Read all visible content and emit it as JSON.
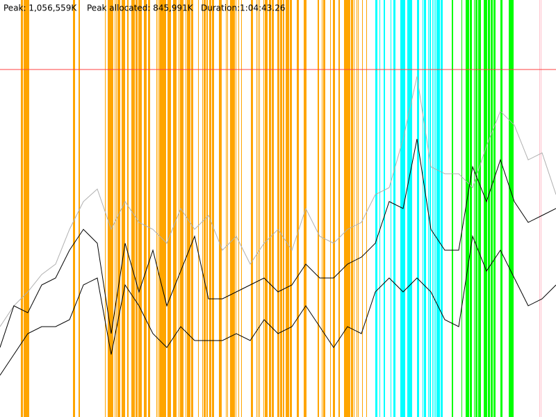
{
  "chart_data": {
    "type": "line",
    "stats": [
      "Peak: 1,056,559K",
      "Peak allocated: 845,991K",
      "Duration:1:04:43.26"
    ],
    "ylim": [
      0,
      1267800
    ],
    "peak_line": 1056559,
    "peak_color": "#ff4040",
    "phase_colors": [
      "#ffa500",
      "#00ffff",
      "#00ff00",
      "#ffc0cb"
    ],
    "series": [
      {
        "color": "#b0b0b0",
        "values": [
          274690,
          338080,
          380340,
          433165,
          464860,
          570510,
          655030,
          693064,
          570510,
          655030,
          591640,
          570510,
          528250,
          633900,
          570510,
          612770,
          507120,
          549380,
          464860,
          528250,
          570510,
          507120,
          633900,
          549380,
          528250,
          570510,
          591640,
          676160,
          697290,
          845200,
          1035370,
          760680,
          739550,
          739550,
          697290,
          824070,
          929720,
          887460,
          781810,
          802940,
          676160
        ]
      },
      {
        "color": "#000000",
        "values": [
          211300,
          338080,
          316950,
          401470,
          422600,
          507120,
          570510,
          528250,
          253560,
          528250,
          380340,
          507120,
          338080,
          443730,
          549380,
          359210,
          359210,
          380340,
          401470,
          422600,
          380340,
          401470,
          464860,
          422600,
          422600,
          464860,
          485990,
          528250,
          655030,
          633900,
          845200,
          570510,
          507120,
          507120,
          760680,
          655030,
          781810,
          655030,
          591640,
          612770,
          633900
        ]
      },
      {
        "color": "#000000",
        "values": [
          126780,
          190170,
          253560,
          274690,
          274690,
          295820,
          401470,
          422600,
          190170,
          401470,
          338080,
          253560,
          211300,
          274690,
          232430,
          232430,
          232430,
          253560,
          232430,
          295820,
          253560,
          274690,
          338080,
          274690,
          211300,
          274690,
          253560,
          380340,
          422600,
          380340,
          422600,
          380340,
          295820,
          274690,
          549380,
          443730,
          507120,
          422600,
          338080,
          359210,
          401470
        ]
      }
    ]
  }
}
